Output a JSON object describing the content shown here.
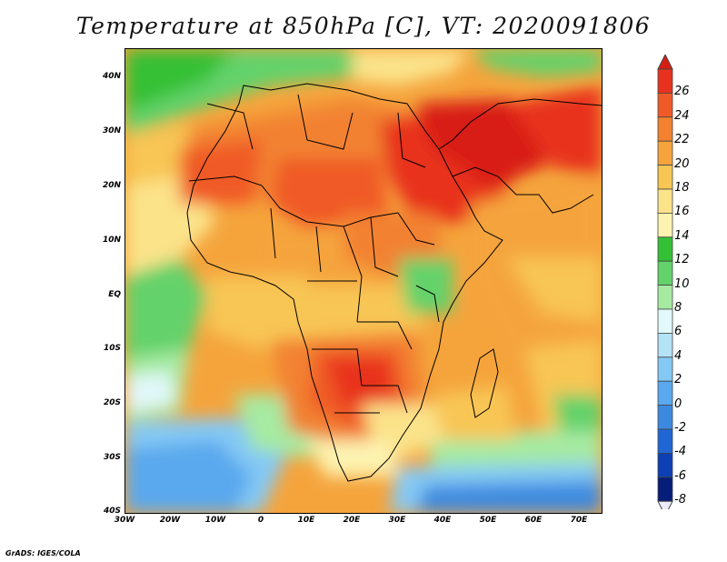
{
  "title": "Temperature at 850hPa [C], VT: 2020091806",
  "credit": "GrADS: IGES/COLA",
  "axes": {
    "lat_labels": [
      "40N",
      "30N",
      "20N",
      "10N",
      "EQ",
      "10S",
      "20S",
      "30S",
      "40S"
    ],
    "lon_labels": [
      "30W",
      "20W",
      "10W",
      "0",
      "10E",
      "20E",
      "30E",
      "40E",
      "50E",
      "60E",
      "70E"
    ]
  },
  "colorbar": {
    "labels": [
      "26",
      "24",
      "22",
      "20",
      "18",
      "16",
      "14",
      "12",
      "10",
      "8",
      "6",
      "4",
      "2",
      "0",
      "-2",
      "-4",
      "-6",
      "-8"
    ],
    "colors": [
      "#e8321f",
      "#f05a28",
      "#f28230",
      "#f5a43c",
      "#f8c654",
      "#fbe38a",
      "#fdf3b0",
      "#34c035",
      "#64d26a",
      "#a6eaa2",
      "#e2f8fa",
      "#b4e2f7",
      "#84c9f4",
      "#5aa8ee",
      "#3c8ae0",
      "#2066d4",
      "#0c40b4",
      "#061e78"
    ],
    "over_color": "#d81e14",
    "under_color": "#ececfa"
  },
  "map": {
    "lon_range": [
      -30,
      75
    ],
    "lat_range": [
      -40,
      45
    ],
    "region": "Africa"
  }
}
